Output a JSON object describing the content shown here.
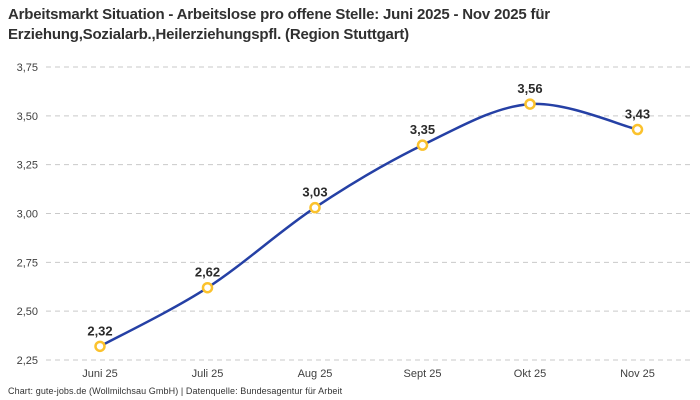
{
  "title": {
    "line1": "Arbeitsmarkt Situation - Arbeitslose pro offene Stelle: Juni 2025 - Nov 2025 für",
    "line2": "Erziehung,Sozialarb.,Heilerziehungspfl. (Region Stuttgart)"
  },
  "footer": "Chart: gute-jobs.de (Wollmilchsau GmbH) | Datenquelle: Bundesagentur für Arbeit",
  "chart_data": {
    "type": "line",
    "title": "Arbeitsmarkt Situation - Arbeitslose pro offene Stelle: Juni 2025 - Nov 2025 für Erziehung,Sozialarb.,Heilerziehungspfl. (Region Stuttgart)",
    "categories": [
      "Juni 25",
      "Juli 25",
      "Aug 25",
      "Sept 25",
      "Okt 25",
      "Nov 25"
    ],
    "values": [
      2.32,
      2.62,
      3.03,
      3.35,
      3.56,
      3.43
    ],
    "point_labels": [
      "2,32",
      "2,62",
      "3,03",
      "3,35",
      "3,56",
      "3,43"
    ],
    "ylim": [
      2.25,
      3.75
    ],
    "ytick_step": 0.25,
    "ytick_labels": [
      "2,25",
      "2,50",
      "2,75",
      "3,00",
      "3,25",
      "3,50",
      "3,75"
    ],
    "xlabel": "",
    "ylabel": "",
    "grid": "horizontal-dashed",
    "legend": "none",
    "colors": {
      "line": "#2540a5",
      "marker_stroke": "#fbc22d",
      "marker_fill": "#ffffff",
      "grid": "#c9c9c9",
      "tick_text": "#3f3f3f",
      "point_label_text": "#2b2b2b"
    }
  }
}
